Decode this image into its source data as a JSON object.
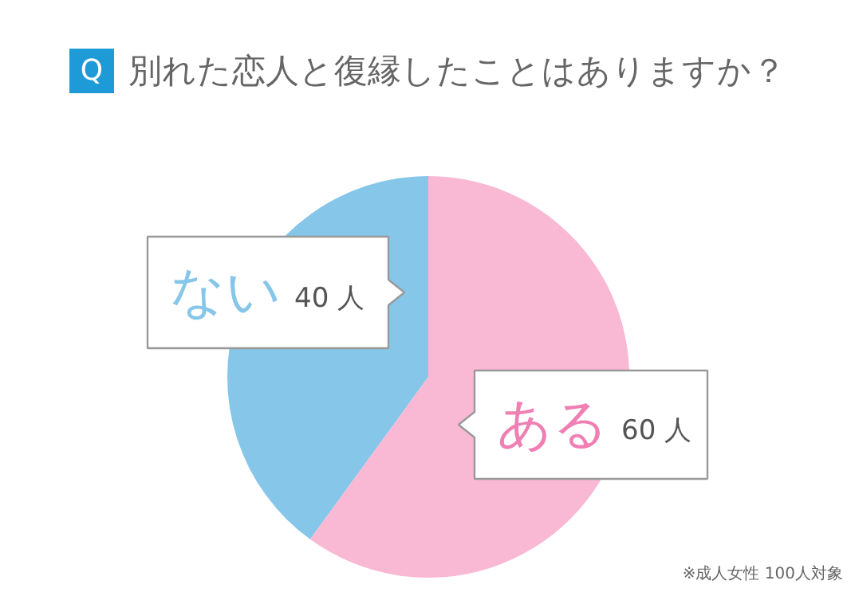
{
  "chart_data": {
    "type": "pie",
    "title": "別れた恋人と復縁したことはありますか？",
    "categories": [
      "ない",
      "ある"
    ],
    "values": [
      40,
      60
    ],
    "colors": [
      "#86c6e9",
      "#f9b8d4"
    ],
    "value_labels": [
      "40 人",
      "60 人"
    ],
    "annotations": [
      "Q",
      "※成人女性 100人対象"
    ]
  }
}
